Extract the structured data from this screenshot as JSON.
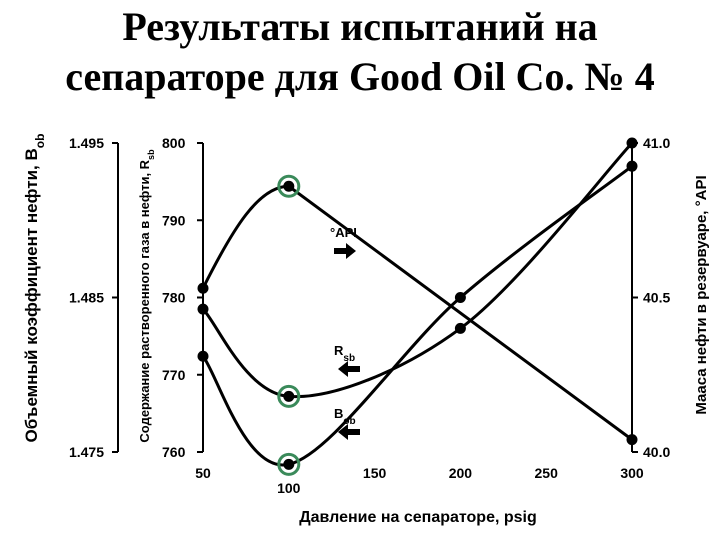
{
  "title": {
    "line1": "Результаты испытаний на",
    "line2": "сепараторе для Good Oil Co. № 4"
  },
  "colors": {
    "line": "#000000",
    "marker": "#000000",
    "highlight": "#3a8a5a",
    "background": "#ffffff"
  },
  "chart_data": {
    "type": "line",
    "title": "Результаты испытаний на сепараторе для Good Oil Co. № 4",
    "xlabel": "Давление на сепараторе, psig",
    "x_ticks": [
      "50",
      "100",
      "150",
      "200",
      "250",
      "300"
    ],
    "xlim": [
      50,
      300
    ],
    "axes": {
      "bob": {
        "label_main": "Объемный коэффициент нефти, B",
        "label_sub": "ob",
        "ticks": [
          "1.495",
          "1.485",
          "1.475"
        ],
        "ylim": [
          1.475,
          1.495
        ]
      },
      "rsb": {
        "label_main": "Содержание растворенного газа в нефти, R",
        "label_sub": "sb",
        "ticks": [
          "800",
          "790",
          "780",
          "770",
          "760"
        ],
        "ylim": [
          760,
          800
        ]
      },
      "api": {
        "label": "Мааса нефти в резервуаре, °API",
        "ticks": [
          "41.0",
          "40.5",
          "40.0"
        ],
        "ylim": [
          40.0,
          41.0
        ]
      }
    },
    "series": [
      {
        "name": "°API",
        "axis": "api",
        "points": [
          [
            50,
            40.53
          ],
          [
            100,
            40.86
          ],
          [
            300,
            40.04
          ]
        ],
        "highlight_x": [
          100
        ],
        "annotation": {
          "main": "°API",
          "sub": "",
          "arrow": "right"
        }
      },
      {
        "name": "Rsb",
        "axis": "rsb",
        "points": [
          [
            50,
            778.5
          ],
          [
            100,
            767.2
          ],
          [
            200,
            776.0
          ],
          [
            300,
            800.0
          ]
        ],
        "highlight_x": [
          100
        ],
        "annotation": {
          "main": "R",
          "sub": "sb",
          "arrow": "left"
        }
      },
      {
        "name": "Bob",
        "axis": "bob",
        "points": [
          [
            50,
            1.4812
          ],
          [
            100,
            1.4742
          ],
          [
            200,
            1.485
          ],
          [
            300,
            1.4935
          ]
        ],
        "highlight_x": [
          100
        ],
        "annotation": {
          "main": "B",
          "sub": "ob",
          "arrow": "left"
        }
      }
    ]
  }
}
